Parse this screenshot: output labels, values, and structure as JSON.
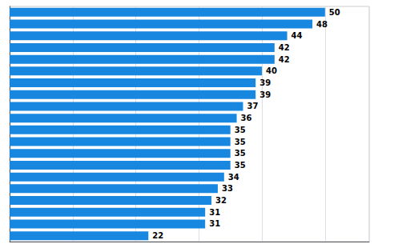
{
  "chart_data": {
    "type": "bar",
    "orientation": "horizontal",
    "categories": [
      null,
      null,
      null,
      null,
      null,
      null,
      null,
      null,
      null,
      null,
      null,
      null,
      null,
      null,
      null,
      null,
      null,
      null,
      null,
      null
    ],
    "values": [
      50,
      48,
      44,
      42,
      42,
      40,
      39,
      39,
      37,
      36,
      35,
      35,
      35,
      35,
      34,
      33,
      32,
      31,
      31,
      22
    ],
    "color": "#1787E0",
    "xlim": [
      0,
      57
    ],
    "xticks": [
      10,
      20,
      30,
      40,
      50
    ],
    "grid": true,
    "data_labels": true,
    "tick_labels": false
  }
}
